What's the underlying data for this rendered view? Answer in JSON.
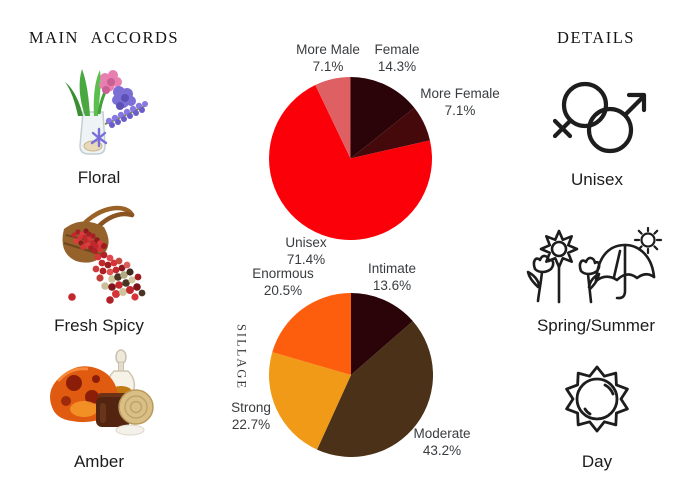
{
  "left_column": {
    "title": "MAIN ACCORDS",
    "accords": [
      {
        "label": "Floral",
        "illustration": "hyacinth-flowers-in-glass-vase"
      },
      {
        "label": "Fresh Spicy",
        "illustration": "pink-peppercorns-spilling-from-basket"
      },
      {
        "label": "Amber",
        "illustration": "amber-stone-jar-and-perfume-bottle"
      }
    ]
  },
  "right_column": {
    "title": "DETAILS",
    "details": [
      {
        "label": "Unisex",
        "icon": "unisex-gender-symbol"
      },
      {
        "label": "Spring/Summer",
        "icon": "flowers-umbrella-and-sun"
      },
      {
        "label": "Day",
        "icon": "sun-outline"
      }
    ]
  },
  "chart_data": [
    {
      "type": "pie",
      "name": "gender",
      "start_angle_deg": 0,
      "direction": "clockwise",
      "slices": [
        {
          "label": "Female",
          "value": 14.3,
          "pct": "14.3%",
          "color": "#2b0409"
        },
        {
          "label": "More Female",
          "value": 7.1,
          "pct": "7.1%",
          "color": "#46090b"
        },
        {
          "label": "Unisex",
          "value": 71.4,
          "pct": "71.4%",
          "color": "#fb0008"
        },
        {
          "label": "More Male",
          "value": 7.1,
          "pct": "7.1%",
          "color": "#df6062"
        }
      ]
    },
    {
      "type": "pie",
      "name": "sillage",
      "axis_label": "SILLAGE",
      "start_angle_deg": 0,
      "direction": "clockwise",
      "slices": [
        {
          "label": "Intimate",
          "value": 13.6,
          "pct": "13.6%",
          "color": "#2b0409"
        },
        {
          "label": "Moderate",
          "value": 43.2,
          "pct": "43.2%",
          "color": "#4a3117"
        },
        {
          "label": "Strong",
          "value": 22.7,
          "pct": "22.7%",
          "color": "#f19a18"
        },
        {
          "label": "Enormous",
          "value": 20.5,
          "pct": "20.5%",
          "color": "#fd5e0e"
        }
      ]
    }
  ],
  "theme": {
    "background": "#ffffff",
    "heading_color": "#161616",
    "label_color": "#393c3f",
    "icon_stroke": "#1d1d1d"
  }
}
